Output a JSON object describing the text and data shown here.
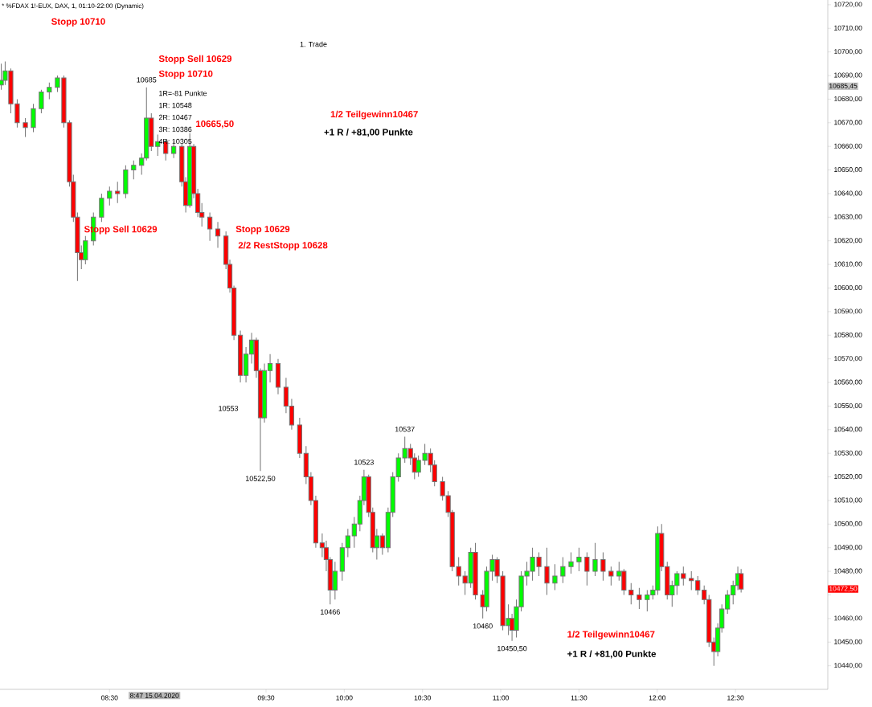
{
  "chart_data": {
    "type": "candlestick",
    "title": "* %FDAX 1!-EUX, DAX, 1, 01:10-22:00 (Dynamic)",
    "x": [
      7.808,
      7.833,
      7.869,
      7.91,
      7.962,
      8.013,
      8.064,
      8.115,
      8.167,
      8.208,
      8.244,
      8.269,
      8.295,
      8.32,
      8.346,
      8.397,
      8.449,
      8.5,
      8.551,
      8.603,
      8.654,
      8.705,
      8.736,
      8.767,
      8.808,
      8.859,
      8.91,
      8.962,
      8.987,
      9.013,
      9.038,
      9.064,
      9.09,
      9.141,
      9.192,
      9.244,
      9.269,
      9.295,
      9.336,
      9.372,
      9.408,
      9.438,
      9.464,
      9.49,
      9.526,
      9.577,
      9.628,
      9.664,
      9.715,
      9.756,
      9.787,
      9.818,
      9.859,
      9.885,
      9.91,
      9.941,
      9.987,
      10.023,
      10.064,
      10.1,
      10.126,
      10.156,
      10.182,
      10.208,
      10.244,
      10.28,
      10.31,
      10.346,
      10.387,
      10.423,
      10.449,
      10.474,
      10.515,
      10.551,
      10.577,
      10.628,
      10.664,
      10.69,
      10.731,
      10.772,
      10.808,
      10.838,
      10.885,
      10.91,
      10.946,
      10.977,
      11.013,
      11.049,
      11.072,
      11.1,
      11.131,
      11.167,
      11.203,
      11.244,
      11.295,
      11.346,
      11.397,
      11.449,
      11.5,
      11.551,
      11.603,
      11.654,
      11.705,
      11.756,
      11.787,
      11.833,
      11.885,
      11.936,
      11.972,
      12.003,
      12.028,
      12.064,
      12.095,
      12.126,
      12.167,
      12.218,
      12.259,
      12.3,
      12.331,
      12.362,
      12.387,
      12.413,
      12.449,
      12.485,
      12.515,
      12.536
    ],
    "ohlc": [
      [
        10686,
        10695,
        10684,
        10688
      ],
      [
        10688,
        10696,
        10686,
        10692
      ],
      [
        10692,
        10693,
        10674,
        10678
      ],
      [
        10678,
        10680,
        10668,
        10670
      ],
      [
        10670,
        10672,
        10664,
        10668
      ],
      [
        10668,
        10678,
        10666,
        10676
      ],
      [
        10676,
        10684,
        10674,
        10683
      ],
      [
        10683,
        10687,
        10680,
        10685
      ],
      [
        10685,
        10690,
        10683,
        10689
      ],
      [
        10689,
        10690,
        10668,
        10670
      ],
      [
        10670,
        10671,
        10643,
        10645
      ],
      [
        10645,
        10648,
        10628,
        10630
      ],
      [
        10630,
        10632,
        10603,
        10615
      ],
      [
        10615,
        10618,
        10608,
        10612
      ],
      [
        10612,
        10622,
        10610,
        10620
      ],
      [
        10620,
        10632,
        10618,
        10630
      ],
      [
        10630,
        10640,
        10628,
        10638
      ],
      [
        10638,
        10643,
        10635,
        10641
      ],
      [
        10641,
        10645,
        10636,
        10640
      ],
      [
        10640,
        10652,
        10638,
        10650
      ],
      [
        10650,
        10654,
        10646,
        10652
      ],
      [
        10652,
        10657,
        10648,
        10655
      ],
      [
        10655,
        10685,
        10654,
        10672
      ],
      [
        10672,
        10674,
        10658,
        10660
      ],
      [
        10660,
        10665,
        10656,
        10662
      ],
      [
        10662,
        10663,
        10654,
        10657
      ],
      [
        10657,
        10662,
        10655,
        10660
      ],
      [
        10660,
        10661,
        10643,
        10645
      ],
      [
        10645,
        10647,
        10632,
        10635
      ],
      [
        10635,
        10665.5,
        10634,
        10660
      ],
      [
        10660,
        10661,
        10638,
        10640
      ],
      [
        10640,
        10642,
        10630,
        10632
      ],
      [
        10632,
        10636,
        10626,
        10630
      ],
      [
        10630,
        10632,
        10620,
        10625
      ],
      [
        10625,
        10628,
        10617,
        10622
      ],
      [
        10622,
        10624,
        10608,
        10610
      ],
      [
        10610,
        10612,
        10598,
        10600
      ],
      [
        10600,
        10601,
        10578,
        10580
      ],
      [
        10580,
        10582,
        10560,
        10563
      ],
      [
        10563,
        10575,
        10560,
        10572
      ],
      [
        10572,
        10581,
        10568,
        10578
      ],
      [
        10578,
        10579,
        10562,
        10565
      ],
      [
        10565,
        10566,
        10522.5,
        10545
      ],
      [
        10545,
        10568,
        10543,
        10565
      ],
      [
        10565,
        10572,
        10560,
        10568
      ],
      [
        10568,
        10570,
        10555,
        10558
      ],
      [
        10558,
        10562,
        10547,
        10550
      ],
      [
        10550,
        10553,
        10540,
        10542
      ],
      [
        10542,
        10545,
        10528,
        10530
      ],
      [
        10530,
        10533,
        10517,
        10520
      ],
      [
        10520,
        10522,
        10508,
        10510
      ],
      [
        10510,
        10512,
        10490,
        10492
      ],
      [
        10492,
        10496,
        10486,
        10490
      ],
      [
        10490,
        10493,
        10480,
        10485
      ],
      [
        10485,
        10486,
        10466,
        10472
      ],
      [
        10472,
        10484,
        10468,
        10480
      ],
      [
        10480,
        10492,
        10476,
        10490
      ],
      [
        10490,
        10498,
        10486,
        10495
      ],
      [
        10495,
        10503,
        10490,
        10500
      ],
      [
        10500,
        10512,
        10497,
        10510
      ],
      [
        10510,
        10523,
        10508,
        10520
      ],
      [
        10520,
        10521,
        10503,
        10505
      ],
      [
        10505,
        10507,
        10488,
        10490
      ],
      [
        10490,
        10498,
        10485,
        10495
      ],
      [
        10495,
        10496,
        10487,
        10490
      ],
      [
        10490,
        10507,
        10488,
        10505
      ],
      [
        10505,
        10522,
        10503,
        10520
      ],
      [
        10520,
        10530,
        10518,
        10528
      ],
      [
        10528,
        10537,
        10526,
        10532
      ],
      [
        10532,
        10534,
        10525,
        10528
      ],
      [
        10528,
        10530,
        10519,
        10522
      ],
      [
        10522,
        10529,
        10520,
        10527
      ],
      [
        10527,
        10534,
        10525,
        10530
      ],
      [
        10530,
        10532,
        10522,
        10525
      ],
      [
        10525,
        10527,
        10516,
        10518
      ],
      [
        10518,
        10520,
        10510,
        10512
      ],
      [
        10512,
        10514,
        10503,
        10505
      ],
      [
        10505,
        10506,
        10480,
        10482
      ],
      [
        10482,
        10486,
        10474,
        10478
      ],
      [
        10478,
        10480,
        10470,
        10475
      ],
      [
        10475,
        10490,
        10473,
        10488
      ],
      [
        10488,
        10492,
        10468,
        10470
      ],
      [
        10470,
        10472,
        10460,
        10465
      ],
      [
        10465,
        10482,
        10463,
        10480
      ],
      [
        10480,
        10487,
        10476,
        10485
      ],
      [
        10485,
        10486,
        10475,
        10478
      ],
      [
        10478,
        10480,
        10455,
        10457
      ],
      [
        10457,
        10466,
        10453,
        10460
      ],
      [
        10460,
        10462,
        10450.5,
        10455
      ],
      [
        10455,
        10468,
        10452,
        10465
      ],
      [
        10465,
        10480,
        10463,
        10478
      ],
      [
        10478,
        10484,
        10474,
        10480
      ],
      [
        10480,
        10490,
        10476,
        10486
      ],
      [
        10486,
        10488,
        10478,
        10482
      ],
      [
        10482,
        10490,
        10470,
        10475
      ],
      [
        10475,
        10483,
        10472,
        10478
      ],
      [
        10478,
        10486,
        10475,
        10482
      ],
      [
        10482,
        10488,
        10479,
        10484
      ],
      [
        10484,
        10490,
        10480,
        10486
      ],
      [
        10486,
        10488,
        10474,
        10480
      ],
      [
        10480,
        10492,
        10478,
        10485
      ],
      [
        10485,
        10488,
        10476,
        10480
      ],
      [
        10480,
        10482,
        10474,
        10478
      ],
      [
        10478,
        10484,
        10476,
        10480
      ],
      [
        10480,
        10481,
        10470,
        10472
      ],
      [
        10472,
        10475,
        10466,
        10470
      ],
      [
        10470,
        10473,
        10464,
        10468
      ],
      [
        10468,
        10472,
        10463,
        10470
      ],
      [
        10470,
        10474,
        10468,
        10472
      ],
      [
        10472,
        10499,
        10470,
        10496
      ],
      [
        10496,
        10500,
        10480,
        10482
      ],
      [
        10482,
        10484,
        10468,
        10470
      ],
      [
        10470,
        10476,
        10465,
        10474
      ],
      [
        10474,
        10480,
        10470,
        10479
      ],
      [
        10479,
        10482,
        10474,
        10477
      ],
      [
        10477,
        10480,
        10472,
        10476
      ],
      [
        10476,
        10478,
        10470,
        10472
      ],
      [
        10472,
        10474,
        10466,
        10468
      ],
      [
        10468,
        10470,
        10448,
        10450
      ],
      [
        10450,
        10452,
        10440,
        10446
      ],
      [
        10446,
        10458,
        10444,
        10456
      ],
      [
        10456,
        10466,
        10454,
        10464
      ],
      [
        10464,
        10472,
        10462,
        10470
      ],
      [
        10470,
        10476,
        10466,
        10474
      ],
      [
        10474,
        10482,
        10472,
        10479
      ],
      [
        10479,
        10481,
        10471,
        10472.5
      ]
    ],
    "xlim": [
      7.8,
      13.09
    ],
    "ylim": [
      10430,
      10722
    ],
    "xticks": [
      {
        "value": 8.5,
        "label": "08:30"
      },
      {
        "value": 9.5,
        "label": "09:30"
      },
      {
        "value": 10,
        "label": "10:00"
      },
      {
        "value": 10.5,
        "label": "10:30"
      },
      {
        "value": 11,
        "label": "11:00"
      },
      {
        "value": 11.5,
        "label": "11:30"
      },
      {
        "value": 12,
        "label": "12:00"
      },
      {
        "value": 12.5,
        "label": "12:30"
      }
    ],
    "yticks": [
      {
        "value": 10440,
        "label": "10440,00"
      },
      {
        "value": 10450,
        "label": "10450,00"
      },
      {
        "value": 10460,
        "label": "10460,00"
      },
      {
        "value": 10470,
        "label": null
      },
      {
        "value": 10480,
        "label": "10480,00"
      },
      {
        "value": 10490,
        "label": "10490,00"
      },
      {
        "value": 10500,
        "label": "10500,00"
      },
      {
        "value": 10510,
        "label": "10510,00"
      },
      {
        "value": 10520,
        "label": "10520,00"
      },
      {
        "value": 10530,
        "label": "10530,00"
      },
      {
        "value": 10540,
        "label": "10540,00"
      },
      {
        "value": 10550,
        "label": "10550,00"
      },
      {
        "value": 10560,
        "label": "10560,00"
      },
      {
        "value": 10570,
        "label": "10570,00"
      },
      {
        "value": 10580,
        "label": "10580,00"
      },
      {
        "value": 10590,
        "label": "10590,00"
      },
      {
        "value": 10600,
        "label": "10600,00"
      },
      {
        "value": 10610,
        "label": "10610,00"
      },
      {
        "value": 10620,
        "label": "10620,00"
      },
      {
        "value": 10630,
        "label": "10630,00"
      },
      {
        "value": 10640,
        "label": "10640,00"
      },
      {
        "value": 10650,
        "label": "10650,00"
      },
      {
        "value": 10660,
        "label": "10660,00"
      },
      {
        "value": 10670,
        "label": "10670,00"
      },
      {
        "value": 10680,
        "label": "10680,00"
      },
      {
        "value": 10690,
        "label": "10690,00"
      },
      {
        "value": 10700,
        "label": "10700,00"
      },
      {
        "value": 10710,
        "label": "10710,00"
      },
      {
        "value": 10720,
        "label": "10720,00"
      }
    ],
    "annotations": [
      "Stopp 10710",
      "1. Trade",
      "Stopp Sell 10629",
      "Stopp 10710",
      "1R=-81 Punkte",
      "1R: 10548",
      "2R: 10467",
      "3R: 10386",
      "4R: 10305",
      "1/2 Teilgewinn10467",
      "+1 R / +81,00 Punkte",
      "Stopp Sell 10629",
      "Stopp 10629",
      "2/2 RestStopp 10628",
      "1/2 Teilgewinn10467",
      "+1 R / +81,00 Punkte",
      "8:47 15.04.2020",
      {
        "text": "10685",
        "x": 8.736,
        "y": 10685
      },
      {
        "text": "10665,50",
        "x": 9.013,
        "y": 10665.5
      },
      "10553",
      {
        "text": "10522,50",
        "x": 9.464,
        "y": 10522.5
      },
      {
        "text": "10523",
        "x": 10.126,
        "y": 10523
      },
      {
        "text": "10537",
        "x": 10.387,
        "y": 10537
      },
      {
        "text": "10466",
        "x": 9.91,
        "y": 10466
      },
      {
        "text": "10460",
        "x": 10.885,
        "y": 10460
      },
      {
        "text": "10450,50",
        "x": 11.072,
        "y": 10450.5
      },
      "10685,45",
      "10472,50"
    ]
  }
}
